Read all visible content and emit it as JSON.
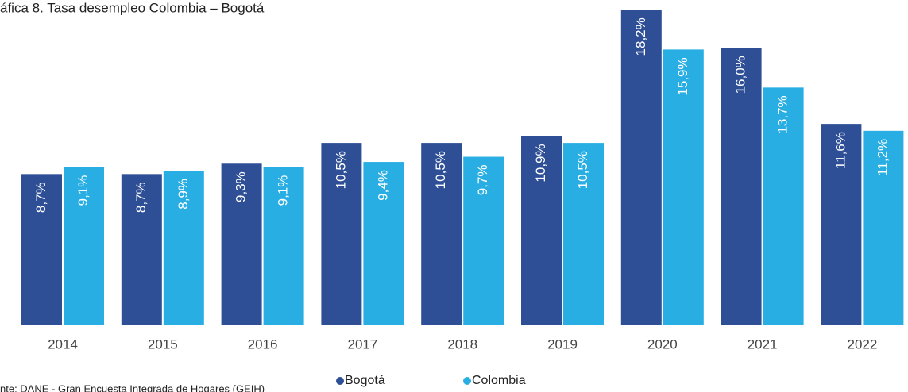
{
  "chart_data": {
    "type": "bar",
    "title": "áfica 8. Tasa desempleo Colombia – Bogotá",
    "source": "nte: DANE - Gran Encuesta Integrada de Hogares (GEIH)",
    "categories": [
      "2014",
      "2015",
      "2016",
      "2017",
      "2018",
      "2019",
      "2020",
      "2021",
      "2022"
    ],
    "series": [
      {
        "name": "Bogotá",
        "color": "#2e4f96",
        "values": [
          8.7,
          8.7,
          9.3,
          10.5,
          10.5,
          10.9,
          18.2,
          16.0,
          11.6
        ],
        "value_labels": [
          "8,7%",
          "8,7%",
          "9,3%",
          "10,5%",
          "10,5%",
          "10,9%",
          "18,2%",
          "16,0%",
          "11,6%"
        ]
      },
      {
        "name": "Colombia",
        "color": "#29aee3",
        "values": [
          9.1,
          8.9,
          9.1,
          9.4,
          9.7,
          10.5,
          15.9,
          13.7,
          11.2
        ],
        "value_labels": [
          "9,1%",
          "8,9%",
          "9,1%",
          "9,4%",
          "9,7%",
          "10,5%",
          "15,9%",
          "13,7%",
          "11,2%"
        ]
      }
    ],
    "legend": "bottom"
  }
}
